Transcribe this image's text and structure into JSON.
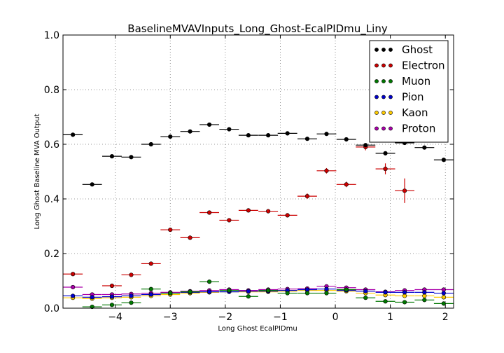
{
  "chart_data": {
    "type": "scatter",
    "title": "BaselineMVAVInputs_Long_Ghost-EcalPIDmu_Liny",
    "xlabel": "Long Ghost EcalPIDmu",
    "ylabel": "Long Ghost Baseline MVA Output",
    "xlim": [
      -4.95,
      2.15
    ],
    "ylim": [
      0.0,
      1.0
    ],
    "x_ticks": [
      -4,
      -3,
      -2,
      -1,
      0,
      1,
      2
    ],
    "x_tick_labels": [
      "−4",
      "−3",
      "−2",
      "−1",
      "0",
      "1",
      "2"
    ],
    "y_ticks": [
      0.0,
      0.2,
      0.4,
      0.6,
      0.8,
      1.0
    ],
    "y_tick_labels": [
      "0.0",
      "0.2",
      "0.4",
      "0.6",
      "0.8",
      "1.0"
    ],
    "grid": true,
    "legend_position": "top-right",
    "bin_width": 0.355,
    "x": [
      -4.77,
      -4.42,
      -4.06,
      -3.71,
      -3.35,
      -3.0,
      -2.64,
      -2.29,
      -1.93,
      -1.58,
      -1.22,
      -0.87,
      -0.51,
      -0.16,
      0.2,
      0.55,
      0.91,
      1.26,
      1.62,
      1.97
    ],
    "series": [
      {
        "name": "Ghost",
        "color": "#000000",
        "values": [
          0.635,
          0.453,
          0.556,
          0.553,
          0.6,
          0.628,
          0.647,
          0.672,
          0.655,
          0.633,
          0.633,
          0.64,
          0.62,
          0.638,
          0.618,
          0.597,
          0.567,
          0.605,
          0.588,
          0.543
        ],
        "errors": [
          0,
          0,
          0,
          0,
          0,
          0,
          0,
          0,
          0,
          0,
          0,
          0,
          0,
          0,
          0,
          0,
          0,
          0,
          0,
          0
        ]
      },
      {
        "name": "Electron",
        "color": "#cc0000",
        "values": [
          0.125,
          null,
          0.082,
          0.122,
          0.163,
          0.287,
          0.258,
          0.35,
          0.322,
          0.358,
          0.355,
          0.34,
          0.41,
          0.503,
          0.453,
          0.59,
          0.51,
          0.43,
          null,
          null
        ],
        "errors": [
          0,
          0,
          0,
          0,
          0,
          0,
          0,
          0,
          0,
          0,
          0,
          0,
          0.01,
          0.01,
          0.01,
          0.012,
          0.02,
          0.045,
          0,
          0
        ]
      },
      {
        "name": "Muon",
        "color": "#007700",
        "values": [
          null,
          0.005,
          0.012,
          0.02,
          0.07,
          0.055,
          0.06,
          0.097,
          0.065,
          0.043,
          0.065,
          0.055,
          0.055,
          0.055,
          0.068,
          0.038,
          0.025,
          0.022,
          0.03,
          0.017
        ],
        "errors": [
          0,
          0,
          0,
          0,
          0,
          0,
          0,
          0,
          0,
          0,
          0,
          0,
          0,
          0,
          0,
          0,
          0,
          0,
          0,
          0
        ]
      },
      {
        "name": "Pion",
        "color": "#0000cc",
        "values": [
          0.045,
          0.04,
          0.042,
          0.045,
          0.05,
          0.055,
          0.058,
          0.06,
          0.06,
          0.062,
          0.062,
          0.065,
          0.068,
          0.07,
          0.065,
          0.062,
          0.058,
          0.058,
          0.058,
          0.055
        ],
        "errors": [
          0,
          0,
          0,
          0,
          0,
          0,
          0,
          0,
          0,
          0,
          0,
          0,
          0,
          0,
          0,
          0,
          0,
          0,
          0,
          0
        ]
      },
      {
        "name": "Kaon",
        "color": "#ffcc00",
        "values": [
          0.038,
          0.035,
          0.038,
          0.04,
          0.045,
          0.05,
          0.055,
          0.058,
          0.06,
          0.06,
          0.06,
          0.062,
          0.065,
          0.065,
          0.062,
          0.055,
          0.048,
          0.045,
          0.045,
          0.04
        ],
        "errors": [
          0,
          0,
          0,
          0,
          0,
          0,
          0,
          0,
          0,
          0,
          0,
          0,
          0,
          0,
          0,
          0,
          0,
          0,
          0,
          0
        ]
      },
      {
        "name": "Proton",
        "color": "#aa00aa",
        "values": [
          0.077,
          0.05,
          0.05,
          0.052,
          0.055,
          0.058,
          0.062,
          0.065,
          0.068,
          0.065,
          0.068,
          0.07,
          0.072,
          0.08,
          0.075,
          0.068,
          0.06,
          0.065,
          0.068,
          0.068
        ],
        "errors": [
          0,
          0,
          0,
          0,
          0,
          0,
          0,
          0,
          0,
          0,
          0,
          0,
          0,
          0,
          0,
          0,
          0,
          0,
          0,
          0
        ]
      }
    ]
  }
}
